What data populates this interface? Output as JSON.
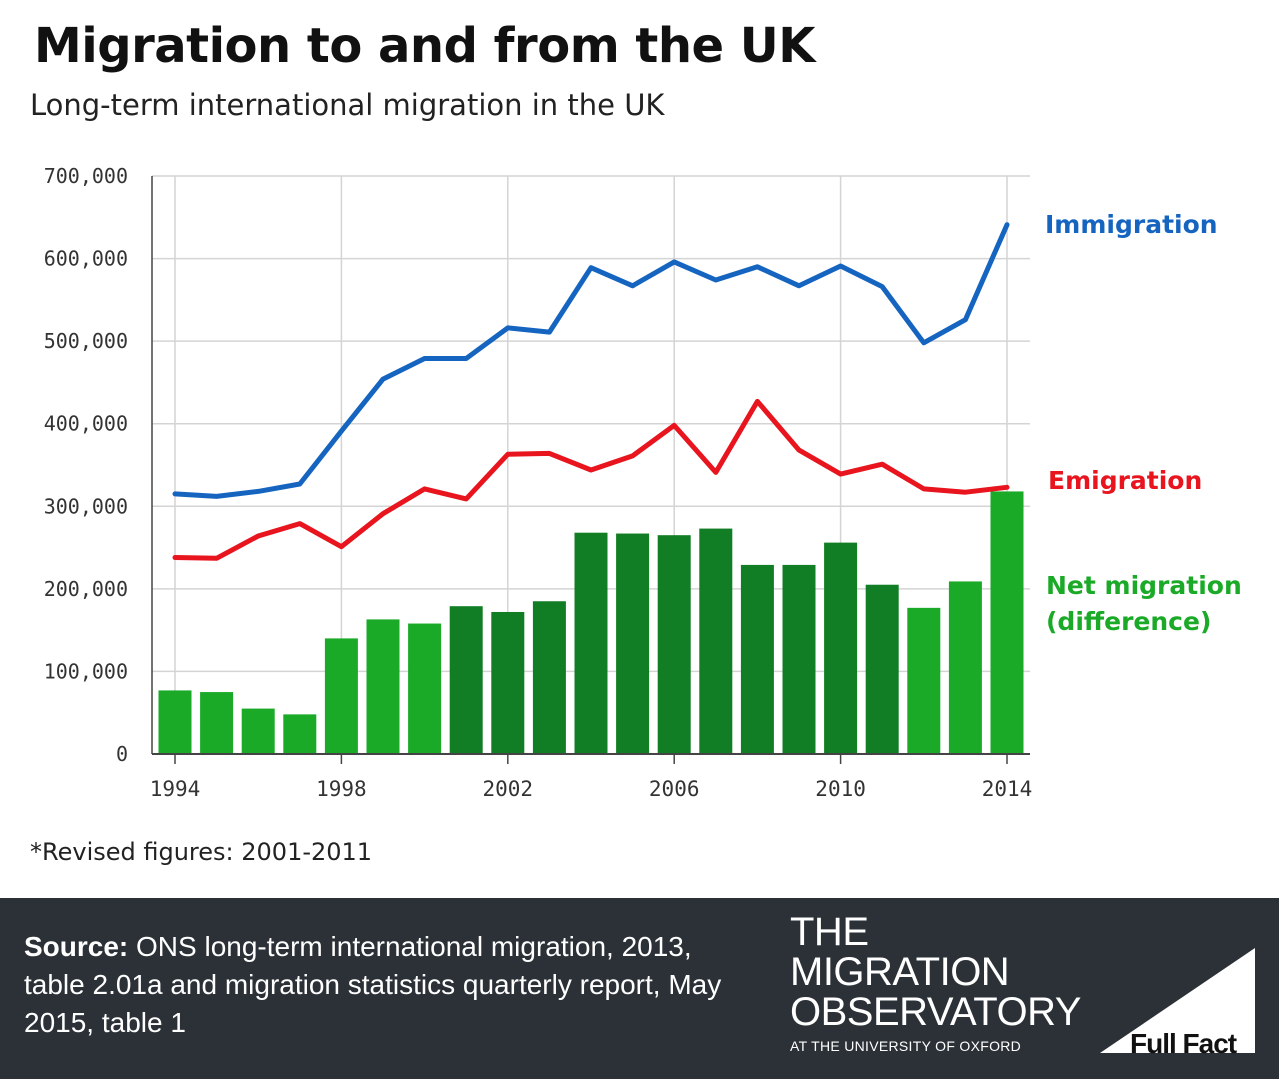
{
  "title": "Migration to and from the UK",
  "subtitle": "Long-term international migration in the UK",
  "note": "*Revised figures: 2001-2011",
  "source": {
    "label": "Source:",
    "text": " ONS long-term international migration, 2013, table 2.01a and migration statistics quarterly report, May 2015, table 1"
  },
  "logo": {
    "line1": "THE",
    "line2": "MIGRATION",
    "line3": "OBSERVATORY",
    "sub": "AT THE UNIVERSITY OF OXFORD"
  },
  "fullfact": "Full Fact",
  "colors": {
    "immigration": "#1565c0",
    "emigration": "#e8141e",
    "net_light": "#1aaa27",
    "net_dark": "#117d24",
    "grid": "#d4d4d4",
    "footer": "#2b3137"
  },
  "chart_data": {
    "type": "bar+line",
    "title": "Migration to and from the UK",
    "subtitle": "Long-term international migration in the UK",
    "ylim": [
      0,
      700000
    ],
    "y_ticks": [
      "0",
      "100,000",
      "200,000",
      "300,000",
      "400,000",
      "500,000",
      "600,000",
      "700,000"
    ],
    "x_ticks": [
      "1994",
      "1998",
      "2002",
      "2006",
      "2010",
      "2014"
    ],
    "x_range": [
      1994,
      2014
    ],
    "series": [
      {
        "name": "Immigration",
        "type": "line",
        "x": [
          1994,
          1995,
          1996,
          1997,
          1998,
          1999,
          2000,
          2001,
          2002,
          2003,
          2004,
          2005,
          2006,
          2007,
          2008,
          2009,
          2010,
          2011,
          2012,
          2013,
          2014
        ],
        "values": [
          315000,
          312000,
          318000,
          327000,
          391000,
          454000,
          479000,
          479000,
          516000,
          511000,
          589000,
          567000,
          596000,
          574000,
          590000,
          567000,
          591000,
          566000,
          498000,
          526000,
          641000
        ]
      },
      {
        "name": "Emigration",
        "type": "line",
        "x": [
          1994,
          1995,
          1996,
          1997,
          1998,
          1999,
          2000,
          2001,
          2002,
          2003,
          2004,
          2005,
          2006,
          2007,
          2008,
          2009,
          2010,
          2011,
          2012,
          2013,
          2014
        ],
        "values": [
          238000,
          237000,
          264000,
          279000,
          251000,
          291000,
          321000,
          309000,
          363000,
          364000,
          344000,
          361000,
          398000,
          341000,
          427000,
          368000,
          339000,
          351000,
          321000,
          317000,
          323000
        ]
      },
      {
        "name": "Net migration (difference)",
        "type": "bar",
        "x": [
          1994,
          1995,
          1996,
          1997,
          1998,
          1999,
          2000,
          2001,
          2002,
          2003,
          2004,
          2005,
          2006,
          2007,
          2008,
          2009,
          2010,
          2011,
          2012,
          2013,
          2014
        ],
        "values": [
          77000,
          75000,
          55000,
          48000,
          140000,
          163000,
          158000,
          179000,
          172000,
          185000,
          268000,
          267000,
          265000,
          273000,
          229000,
          229000,
          256000,
          205000,
          177000,
          209000,
          318000
        ],
        "revised": [
          false,
          false,
          false,
          false,
          false,
          false,
          false,
          true,
          true,
          true,
          true,
          true,
          true,
          true,
          true,
          true,
          true,
          true,
          false,
          false,
          false
        ]
      }
    ],
    "labels": {
      "immigration": "Immigration",
      "emigration": "Emigration",
      "net_line1": "Net migration",
      "net_line2": "(difference)"
    }
  }
}
